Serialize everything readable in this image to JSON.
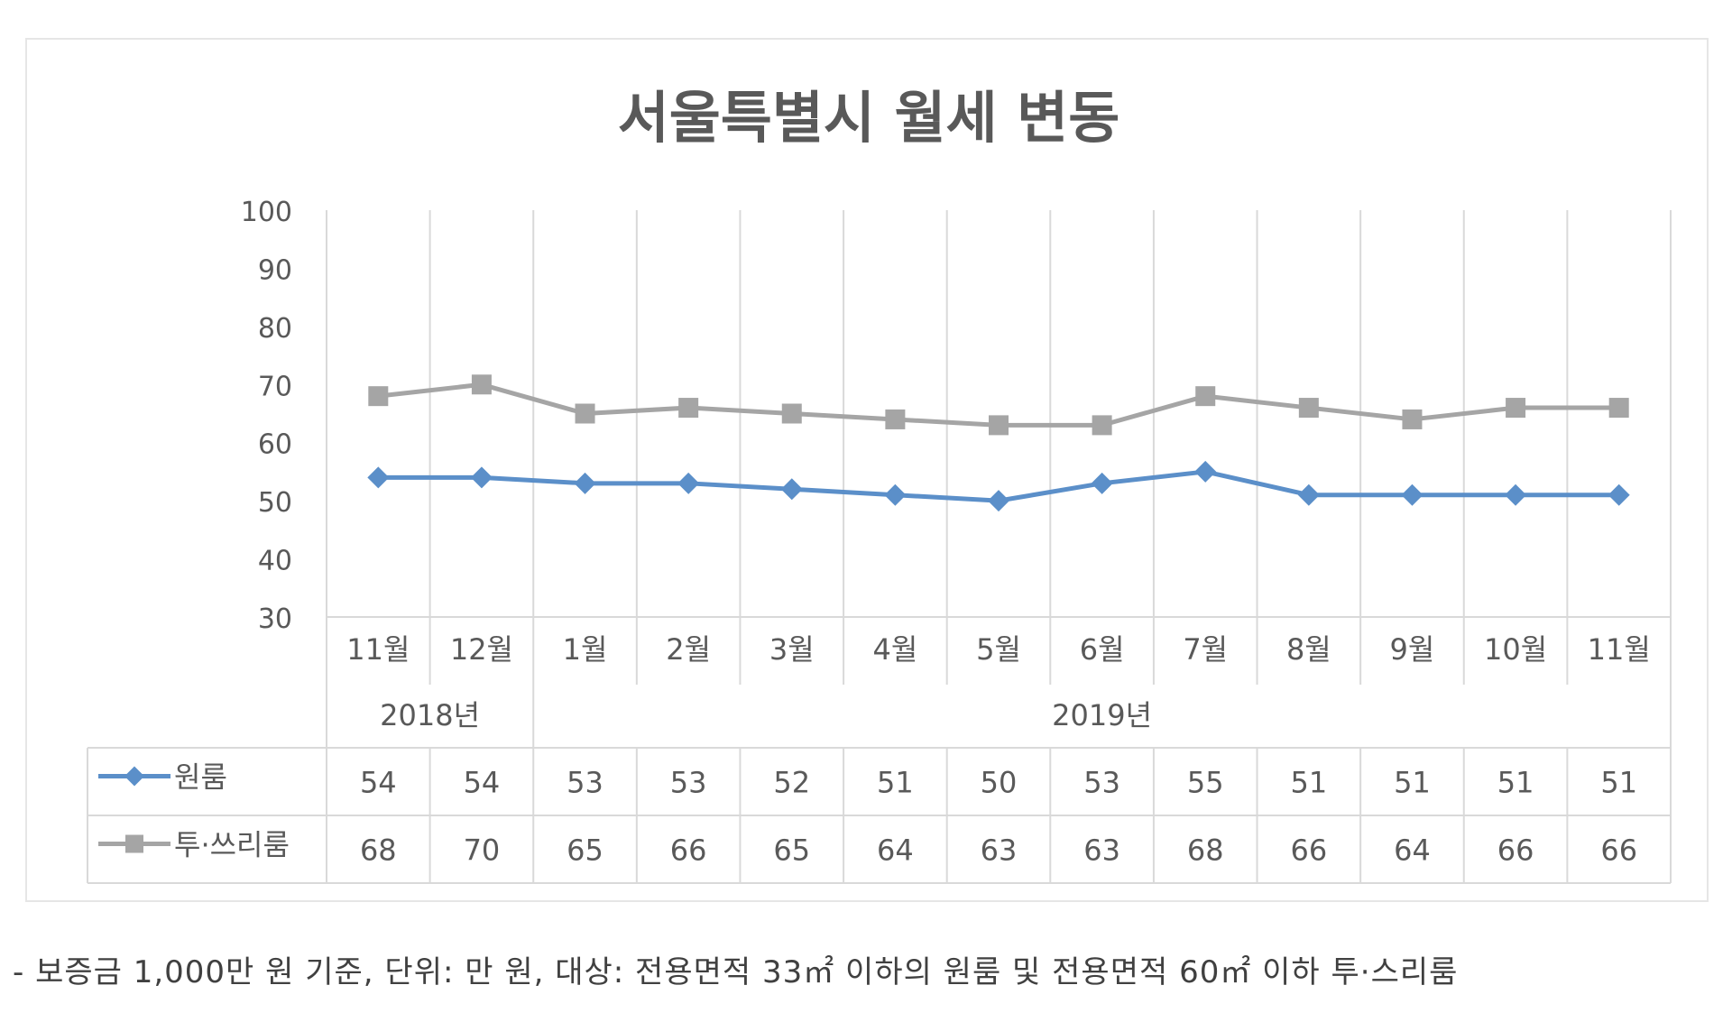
{
  "chart_data": {
    "type": "line",
    "title": "서울특별시 월세 변동",
    "ylim": [
      30,
      100
    ],
    "yticks": [
      "100",
      "90",
      "80",
      "70",
      "60",
      "50",
      "40",
      "30"
    ],
    "categories": [
      "11월",
      "12월",
      "1월",
      "2월",
      "3월",
      "4월",
      "5월",
      "6월",
      "7월",
      "8월",
      "9월",
      "10월",
      "11월"
    ],
    "year_groups": [
      {
        "label": "2018년",
        "count": 2
      },
      {
        "label": "2019년",
        "count": 11
      }
    ],
    "series": [
      {
        "name": "원룸",
        "marker": "diamond",
        "color": "#5b8fc9",
        "values": [
          54,
          54,
          53,
          53,
          52,
          51,
          50,
          53,
          55,
          51,
          51,
          51,
          51
        ]
      },
      {
        "name": "투·쓰리룸",
        "marker": "square",
        "color": "#a5a5a5",
        "values": [
          68,
          70,
          65,
          66,
          65,
          64,
          63,
          63,
          68,
          66,
          64,
          66,
          66
        ]
      }
    ],
    "grid": true,
    "legend": "data-table-left"
  },
  "footnote": "- 보증금 1,000만 원 기준, 단위: 만 원, 대상: 전용면적 33㎡ 이하의 원룸 및 전용면적 60㎡ 이하 투·스리룸"
}
